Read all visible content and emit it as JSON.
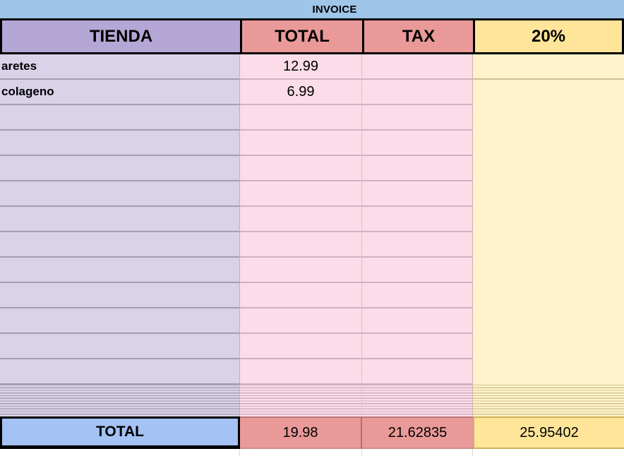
{
  "sheet": {
    "title": "INVOICE",
    "columns": {
      "tienda": "TIENDA",
      "total": "TOTAL",
      "tax": "TAX",
      "pct": "20%"
    },
    "rows": [
      {
        "tienda": "aretes",
        "total": "12.99",
        "tax": "",
        "pct": ""
      },
      {
        "tienda": "colageno",
        "total": "6.99",
        "tax": "",
        "pct": ""
      },
      {
        "tienda": "",
        "total": "",
        "tax": "",
        "pct": ""
      },
      {
        "tienda": "",
        "total": "",
        "tax": "",
        "pct": ""
      },
      {
        "tienda": "",
        "total": "",
        "tax": "",
        "pct": ""
      },
      {
        "tienda": "",
        "total": "",
        "tax": "",
        "pct": ""
      },
      {
        "tienda": "",
        "total": "",
        "tax": "",
        "pct": ""
      },
      {
        "tienda": "",
        "total": "",
        "tax": "",
        "pct": ""
      },
      {
        "tienda": "",
        "total": "",
        "tax": "",
        "pct": ""
      },
      {
        "tienda": "",
        "total": "",
        "tax": "",
        "pct": ""
      },
      {
        "tienda": "",
        "total": "",
        "tax": "",
        "pct": ""
      },
      {
        "tienda": "",
        "total": "",
        "tax": "",
        "pct": ""
      },
      {
        "tienda": "",
        "total": "",
        "tax": "",
        "pct": ""
      }
    ],
    "footer": {
      "label": "TOTAL",
      "total": "19.98",
      "tax": "21.62835",
      "pct": "25.95402"
    },
    "colors": {
      "title_band_blue": "#9fc5e8",
      "header_purple": "#b4a7d6",
      "header_red": "#ea9999",
      "header_yellow": "#ffe599",
      "cell_purple": "#d9d2e9",
      "cell_pink": "#fbdce8",
      "cell_yellow": "#fff2cc",
      "footer_blue": "#a4c2f4",
      "border_black": "#000000"
    }
  }
}
